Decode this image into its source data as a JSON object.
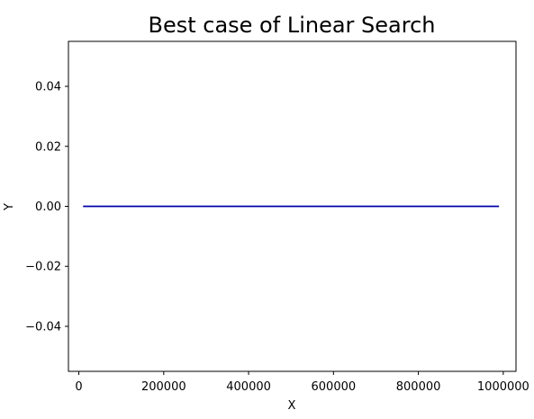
{
  "chart_data": {
    "type": "line",
    "title": "Best case of Linear Search",
    "xlabel": "X",
    "ylabel": "Y",
    "xlim": [
      -24500,
      1030000
    ],
    "ylim": [
      -0.055,
      0.055
    ],
    "xticks": [
      0,
      200000,
      400000,
      600000,
      800000,
      1000000
    ],
    "xtick_labels": [
      "0",
      "200000",
      "400000",
      "600000",
      "800000",
      "1000000"
    ],
    "yticks": [
      -0.04,
      -0.02,
      0.0,
      0.02,
      0.04
    ],
    "ytick_labels": [
      "−0.04",
      "−0.02",
      "0.00",
      "0.02",
      "0.04"
    ],
    "grid": false,
    "series": [
      {
        "color": "#0000aa",
        "x": [
          10000,
          990000
        ],
        "y": [
          0,
          0
        ]
      }
    ]
  }
}
